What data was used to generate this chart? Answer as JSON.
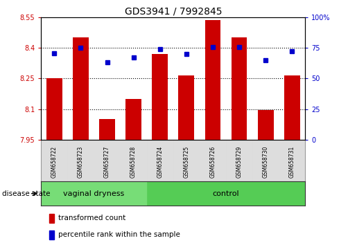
{
  "title": "GDS3941 / 7992845",
  "samples": [
    "GSM658722",
    "GSM658723",
    "GSM658727",
    "GSM658728",
    "GSM658724",
    "GSM658725",
    "GSM658726",
    "GSM658729",
    "GSM658730",
    "GSM658731"
  ],
  "bar_values": [
    8.25,
    8.45,
    8.05,
    8.15,
    8.37,
    8.265,
    8.535,
    8.45,
    8.095,
    8.265
  ],
  "percentile_values": [
    70.5,
    75.0,
    63.0,
    67.0,
    74.0,
    70.0,
    75.5,
    75.5,
    65.0,
    72.0
  ],
  "ymin": 7.95,
  "ymax": 8.55,
  "yticks": [
    7.95,
    8.1,
    8.25,
    8.4,
    8.55
  ],
  "ytick_labels": [
    "7.95",
    "8.1",
    "8.25",
    "8.4",
    "8.55"
  ],
  "right_yticks": [
    0,
    25,
    50,
    75,
    100
  ],
  "right_ytick_labels": [
    "0",
    "25",
    "50",
    "75",
    "100%"
  ],
  "bar_color": "#cc0000",
  "percentile_color": "#0000cc",
  "grid_color": "#000000",
  "bar_width": 0.6,
  "groups": [
    {
      "label": "vaginal dryness",
      "start": 0,
      "end": 4,
      "color": "#77dd77"
    },
    {
      "label": "control",
      "start": 4,
      "end": 10,
      "color": "#55cc55"
    }
  ],
  "disease_state_label": "disease state",
  "legend_bar_label": "transformed count",
  "legend_pct_label": "percentile rank within the sample",
  "title_fontsize": 10,
  "tick_label_color_left": "#cc0000",
  "tick_label_color_right": "#0000cc",
  "sample_area_color": "#cccccc",
  "sample_col_color": "#dddddd"
}
